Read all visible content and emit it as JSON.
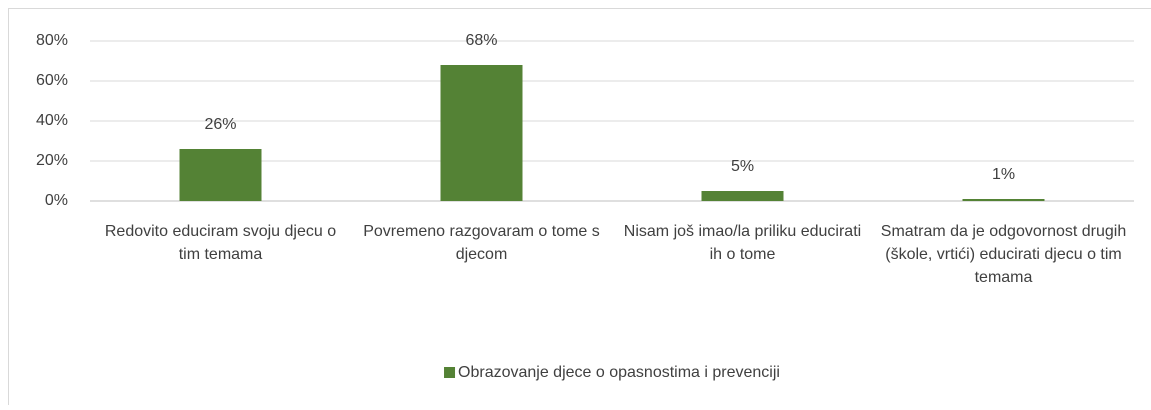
{
  "chart_data": {
    "type": "bar",
    "categories": [
      "Redovito educiram svoju djecu o tim temama",
      "Povremeno razgovaram o tome s djecom",
      "Nisam još imao/la priliku educirati ih o tome",
      "Smatram da je odgovornost drugih (škole, vrtići) educirati djecu o tim temama"
    ],
    "series": [
      {
        "name": "Obrazovanje djece o opasnostima i prevenciji",
        "color": "#548235",
        "values": [
          26,
          68,
          5,
          1
        ],
        "value_labels": [
          "26%",
          "68%",
          "5%",
          "1%"
        ]
      }
    ],
    "ylim": [
      0,
      80
    ],
    "yticks": [
      {
        "value": 0,
        "label": "0%"
      },
      {
        "value": 20,
        "label": "20%"
      },
      {
        "value": 40,
        "label": "40%"
      },
      {
        "value": 60,
        "label": "60%"
      },
      {
        "value": 80,
        "label": "80%"
      }
    ],
    "grid": true,
    "legend": "bottom"
  }
}
